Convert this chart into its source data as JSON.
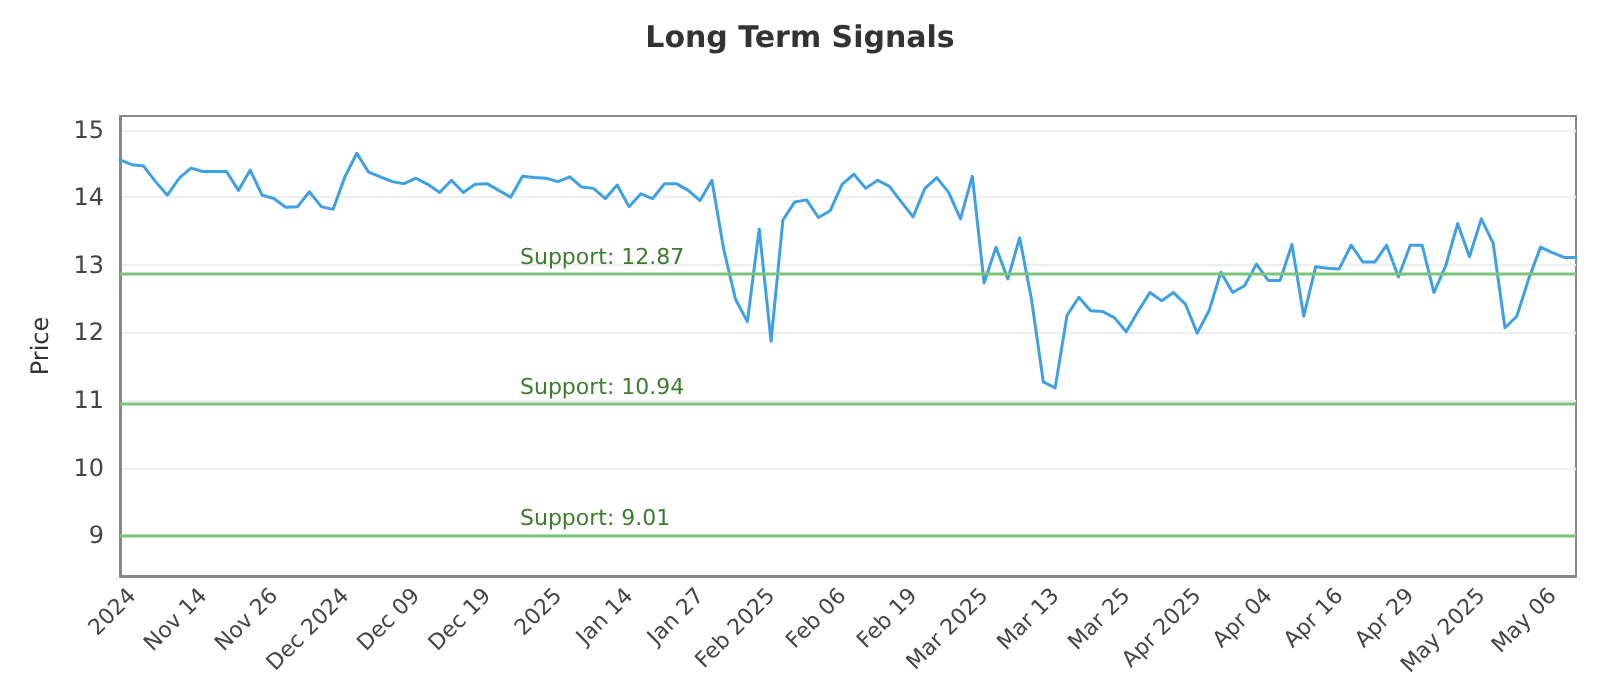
{
  "chart_data": {
    "type": "line",
    "title": "Long Term Signals",
    "ylabel": "Price",
    "categories": [
      null,
      "2024",
      null,
      null,
      null,
      null,
      null,
      "Nov 14",
      null,
      null,
      null,
      null,
      null,
      "Nov 26",
      null,
      null,
      null,
      null,
      null,
      "Dec 2024",
      null,
      null,
      null,
      null,
      null,
      "Dec 09",
      null,
      null,
      null,
      null,
      null,
      "Dec 19",
      null,
      null,
      null,
      null,
      null,
      "2025",
      null,
      null,
      null,
      null,
      null,
      "Jan 14",
      null,
      null,
      null,
      null,
      null,
      "Jan 27",
      null,
      null,
      null,
      null,
      null,
      "Feb 2025",
      null,
      null,
      null,
      null,
      null,
      "Feb 06",
      null,
      null,
      null,
      null,
      null,
      "Feb 19",
      null,
      null,
      null,
      null,
      null,
      "Mar 2025",
      null,
      null,
      null,
      null,
      null,
      "Mar 13",
      null,
      null,
      null,
      null,
      null,
      "Mar 25",
      null,
      null,
      null,
      null,
      null,
      "Apr 2025",
      null,
      null,
      null,
      null,
      null,
      "Apr 04",
      null,
      null,
      null,
      null,
      null,
      "Apr 16",
      null,
      null,
      null,
      null,
      null,
      "Apr 29",
      null,
      null,
      null,
      null,
      null,
      "May 2025",
      null,
      null,
      null,
      null,
      null,
      "May 06",
      null,
      null
    ],
    "series": [
      {
        "color": "#3fa0e3",
        "values": [
          14.55,
          14.48,
          14.46,
          14.23,
          14.03,
          14.28,
          14.43,
          14.38,
          14.38,
          14.38,
          14.1,
          14.4,
          14.03,
          13.98,
          13.85,
          13.86,
          14.08,
          13.86,
          13.82,
          14.3,
          14.65,
          14.37,
          14.3,
          14.23,
          14.2,
          14.28,
          14.19,
          14.07,
          14.25,
          14.07,
          14.19,
          14.2,
          14.1,
          14.0,
          14.31,
          14.29,
          14.28,
          14.23,
          14.3,
          14.15,
          14.13,
          13.98,
          14.18,
          13.86,
          14.05,
          13.98,
          14.2,
          14.2,
          14.1,
          13.95,
          14.25,
          13.23,
          12.49,
          12.16,
          13.53,
          11.87,
          13.66,
          13.93,
          13.96,
          13.7,
          13.8,
          14.19,
          14.34,
          14.13,
          14.25,
          14.16,
          13.93,
          13.71,
          14.13,
          14.29,
          14.07,
          13.68,
          14.31,
          12.73,
          13.26,
          12.79,
          13.4,
          12.49,
          11.27,
          11.18,
          12.25,
          12.52,
          12.32,
          12.31,
          12.22,
          12.01,
          12.31,
          12.59,
          12.47,
          12.59,
          12.42,
          11.99,
          12.32,
          12.89,
          12.59,
          12.69,
          13.01,
          12.77,
          12.77,
          13.3,
          12.24,
          12.97,
          12.95,
          12.94,
          13.29,
          13.04,
          13.04,
          13.29,
          12.82,
          13.29,
          13.29,
          12.59,
          12.99,
          13.61,
          13.12,
          13.68,
          13.32,
          12.07,
          12.24,
          12.79,
          13.26,
          13.18,
          13.11,
          13.11
        ]
      }
    ],
    "ylim": [
      8.4,
      15.2
    ],
    "yticks": [
      9,
      10,
      11,
      12,
      13,
      14,
      15
    ],
    "grid": "y",
    "marker": "none",
    "line_style": "solid",
    "ref_lines": [
      {
        "axis": "y",
        "value": 12.87,
        "label": "Support: 12.87",
        "color": "#7cc47c"
      },
      {
        "axis": "y",
        "value": 10.94,
        "label": "Support: 10.94",
        "color": "#7cc47c"
      },
      {
        "axis": "y",
        "value": 9.01,
        "label": "Support: 9.01",
        "color": "#7cc47c"
      }
    ]
  }
}
